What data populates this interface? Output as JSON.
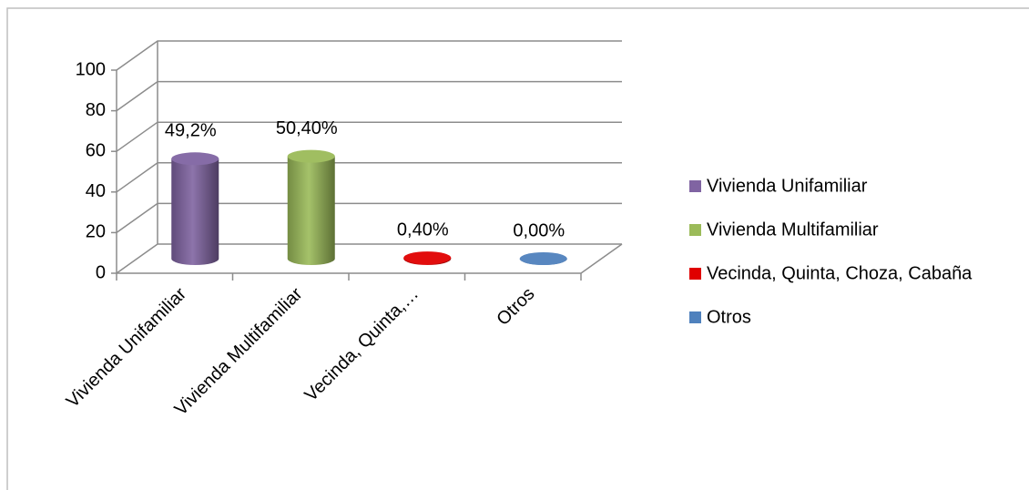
{
  "chart_data": {
    "type": "bar3d",
    "categories": [
      "Vivienda Unifamiliar",
      "Vivienda Multifamiliar",
      "Vecinda, Quinta,…",
      "Otros"
    ],
    "legend": [
      "Vivienda Unifamiliar",
      "Vivienda Multifamiliar",
      "Vecinda, Quinta, Choza, Cabaña",
      "Otros"
    ],
    "colors": [
      "#8064a2",
      "#9bbb59",
      "#e00000",
      "#4f81bd"
    ],
    "values": [
      49.2,
      50.4,
      0.4,
      0
    ],
    "value_labels": [
      "49,2%",
      "50,40%",
      "0,40%",
      "0,00%"
    ],
    "ylim": [
      0,
      100
    ],
    "yticks": [
      0,
      20,
      40,
      60,
      80,
      100
    ],
    "grid": true
  }
}
